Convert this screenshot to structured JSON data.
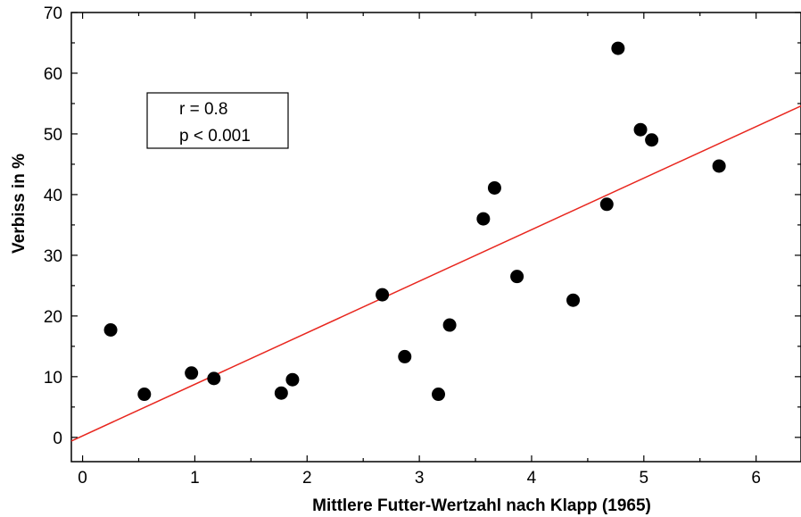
{
  "chart_data": {
    "type": "scatter",
    "xlabel": "Mittlere Futter-Wertzahl nach Klapp (1965)",
    "ylabel": "Verbiss  in %",
    "xlim": [
      -0.1,
      6.4
    ],
    "ylim": [
      -4,
      70
    ],
    "xticks": [
      0,
      1,
      2,
      3,
      4,
      5,
      6
    ],
    "yticks": [
      0,
      10,
      20,
      30,
      40,
      50,
      60,
      70
    ],
    "grid": false,
    "points": [
      {
        "x": 0.25,
        "y": 17.7
      },
      {
        "x": 0.55,
        "y": 7.1
      },
      {
        "x": 0.97,
        "y": 10.6
      },
      {
        "x": 1.17,
        "y": 9.7
      },
      {
        "x": 1.77,
        "y": 7.3
      },
      {
        "x": 1.87,
        "y": 9.5
      },
      {
        "x": 2.67,
        "y": 23.5
      },
      {
        "x": 2.87,
        "y": 13.3
      },
      {
        "x": 3.17,
        "y": 7.1
      },
      {
        "x": 3.27,
        "y": 18.5
      },
      {
        "x": 3.57,
        "y": 36.0
      },
      {
        "x": 3.67,
        "y": 41.1
      },
      {
        "x": 3.87,
        "y": 26.5
      },
      {
        "x": 4.37,
        "y": 22.6
      },
      {
        "x": 4.67,
        "y": 38.4
      },
      {
        "x": 4.77,
        "y": 64.1
      },
      {
        "x": 4.97,
        "y": 50.7
      },
      {
        "x": 5.07,
        "y": 49.0
      },
      {
        "x": 5.67,
        "y": 44.7
      }
    ],
    "trendline": {
      "x": [
        -0.1,
        6.4
      ],
      "y": [
        -0.6,
        54.6
      ],
      "color": "#e8261e"
    },
    "annotation": [
      "r = 0.8",
      "p < 0.001"
    ],
    "marker_color": "#000000"
  }
}
